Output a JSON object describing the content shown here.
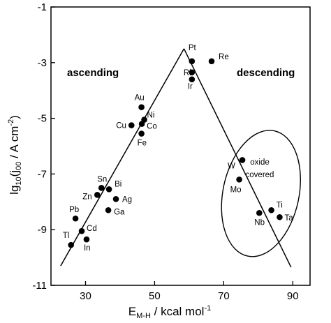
{
  "chart_data": {
    "type": "scatter",
    "xlabel_main": "E",
    "xlabel_sub": "M-H",
    "xlabel_rest": " / kcal mol",
    "xlabel_sup": "-1",
    "ylabel_main": "lg",
    "ylabel_sub1": "10",
    "ylabel_mid": "(j",
    "ylabel_sub2": "00",
    "ylabel_rest": " / A cm",
    "ylabel_sup": "-2",
    "ylabel_end": ")",
    "xlim": [
      20,
      95
    ],
    "ylim": [
      -11,
      -1
    ],
    "xticks": [
      30,
      50,
      70,
      90
    ],
    "yticks": [
      -1,
      -3,
      -5,
      -7,
      -9,
      -11
    ],
    "annotations": {
      "ascending": "ascending",
      "descending": "descending",
      "oxide_1": "oxide",
      "oxide_2": "covered"
    },
    "lines": [
      {
        "name": "ascending",
        "x": [
          22.8,
          58.5
        ],
        "y": [
          -10.3,
          -2.5
        ]
      },
      {
        "name": "descending",
        "x": [
          58.5,
          89.5
        ],
        "y": [
          -2.5,
          -10.35
        ]
      }
    ],
    "oxide_region": {
      "cx": 80.8,
      "cy": -7.7,
      "rx": 11,
      "ry": 2.3,
      "angle_deg": 12
    },
    "points": [
      {
        "label": "Pt",
        "x": 60.8,
        "y": -2.95
      },
      {
        "label": "Re",
        "x": 66.5,
        "y": -2.95
      },
      {
        "label": "Rh",
        "x": 60.8,
        "y": -3.35
      },
      {
        "label": "Ir",
        "x": 60.8,
        "y": -3.6
      },
      {
        "label": "Au",
        "x": 46.2,
        "y": -4.6
      },
      {
        "label": "Ni",
        "x": 47.0,
        "y": -5.05
      },
      {
        "label": "Co",
        "x": 46.3,
        "y": -5.2
      },
      {
        "label": "Cu",
        "x": 43.3,
        "y": -5.25
      },
      {
        "label": "Fe",
        "x": 46.2,
        "y": -5.55
      },
      {
        "label": "Sn",
        "x": 34.6,
        "y": -7.5
      },
      {
        "label": "Bi",
        "x": 36.8,
        "y": -7.55
      },
      {
        "label": "Zn",
        "x": 33.4,
        "y": -7.75
      },
      {
        "label": "Ag",
        "x": 38.8,
        "y": -7.9
      },
      {
        "label": "Ga",
        "x": 36.6,
        "y": -8.3
      },
      {
        "label": "Pb",
        "x": 27.1,
        "y": -8.6
      },
      {
        "label": "Cd",
        "x": 28.9,
        "y": -9.05
      },
      {
        "label": "In",
        "x": 30.3,
        "y": -9.35
      },
      {
        "label": "Tl",
        "x": 25.8,
        "y": -9.55
      },
      {
        "label": "W",
        "x": 75.4,
        "y": -6.5
      },
      {
        "label": "Mo",
        "x": 74.5,
        "y": -7.2
      },
      {
        "label": "Ti",
        "x": 83.8,
        "y": -8.3
      },
      {
        "label": "Nb",
        "x": 80.3,
        "y": -8.4
      },
      {
        "label": "Ta",
        "x": 86.2,
        "y": -8.55
      }
    ]
  }
}
